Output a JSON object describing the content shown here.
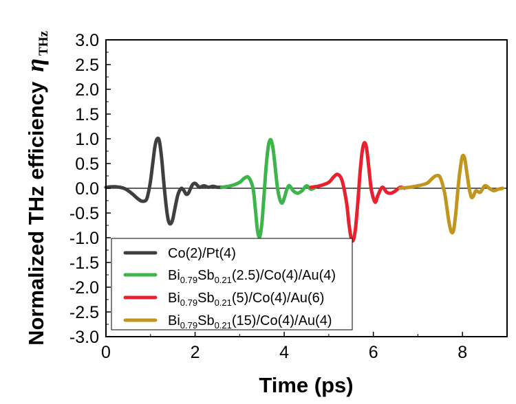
{
  "chart_data": {
    "type": "line",
    "xlabel": "Time (ps)",
    "ylabel_main": "Normalized THz efficiency",
    "ylabel_symbol": "η",
    "ylabel_symbol_sub": "THz",
    "xlim": [
      0,
      9
    ],
    "ylim": [
      -3.0,
      3.0
    ],
    "x_ticks": [
      0,
      2,
      4,
      6,
      8
    ],
    "x_tick_labels": [
      "0",
      "2",
      "4",
      "6",
      "8"
    ],
    "y_ticks": [
      3.0,
      2.5,
      2.0,
      1.5,
      1.0,
      0.5,
      0.0,
      -0.5,
      -1.0,
      -1.5,
      -2.0,
      -2.5,
      -3.0
    ],
    "y_tick_labels": [
      "3.0",
      "2.5",
      "2.0",
      "1.5",
      "1.0",
      "0.5",
      "0.0",
      "-0.5",
      "-1.0",
      "-1.5",
      "-2.0",
      "-2.5",
      "-3.0"
    ],
    "zero_line": true,
    "legend_position": "bottom-left",
    "series": [
      {
        "name": "Co(2)/Pt(4)",
        "label_parts": [
          {
            "t": "Co(2)/Pt(4)",
            "sub": false
          }
        ],
        "color": "#3f3f3f",
        "x": [
          0.0,
          0.2,
          0.4,
          0.5,
          0.6,
          0.7,
          0.8,
          0.9,
          0.95,
          1.0,
          1.05,
          1.1,
          1.15,
          1.2,
          1.25,
          1.3,
          1.35,
          1.4,
          1.45,
          1.5,
          1.55,
          1.6,
          1.65,
          1.7,
          1.75,
          1.8,
          1.85,
          1.9,
          1.95,
          2.0,
          2.05,
          2.1,
          2.2,
          2.3,
          2.4,
          2.5,
          2.6
        ],
        "y": [
          0.02,
          0.03,
          0.0,
          -0.05,
          -0.12,
          -0.2,
          -0.26,
          -0.24,
          -0.1,
          0.15,
          0.5,
          0.85,
          1.0,
          0.95,
          0.6,
          0.1,
          -0.35,
          -0.65,
          -0.72,
          -0.62,
          -0.4,
          -0.18,
          -0.05,
          0.0,
          -0.05,
          -0.12,
          -0.1,
          0.0,
          0.08,
          0.1,
          0.06,
          0.02,
          0.05,
          0.02,
          0.04,
          0.02,
          0.02
        ]
      },
      {
        "name": "Bi0.79Sb0.21(2.5)/Co(4)/Au(4)",
        "label_parts": [
          {
            "t": "Bi",
            "sub": false
          },
          {
            "t": "0.79",
            "sub": true
          },
          {
            "t": "Sb",
            "sub": false
          },
          {
            "t": "0.21",
            "sub": true
          },
          {
            "t": "(2.5)/Co(4)/Au(4)",
            "sub": false
          }
        ],
        "color": "#3cb54a",
        "x": [
          2.6,
          2.8,
          3.0,
          3.1,
          3.2,
          3.3,
          3.35,
          3.4,
          3.45,
          3.5,
          3.55,
          3.6,
          3.65,
          3.7,
          3.75,
          3.8,
          3.85,
          3.9,
          3.95,
          4.0,
          4.05,
          4.1,
          4.15,
          4.2,
          4.3,
          4.4,
          4.5,
          4.6,
          4.7
        ],
        "y": [
          0.02,
          0.05,
          0.12,
          0.2,
          0.22,
          0.0,
          -0.4,
          -0.85,
          -0.98,
          -0.7,
          -0.1,
          0.5,
          0.88,
          0.98,
          0.8,
          0.4,
          0.0,
          -0.22,
          -0.3,
          -0.2,
          -0.05,
          0.05,
          0.02,
          -0.05,
          -0.1,
          -0.05,
          0.05,
          -0.02,
          0.02
        ]
      },
      {
        "name": "Bi0.79Sb0.21(5)/Co(4)/Au(6)",
        "label_parts": [
          {
            "t": "Bi",
            "sub": false
          },
          {
            "t": "0.79",
            "sub": true
          },
          {
            "t": "Sb",
            "sub": false
          },
          {
            "t": "0.21",
            "sub": true
          },
          {
            "t": "(5)/Co(4)/Au(6)",
            "sub": false
          }
        ],
        "color": "#e8212c",
        "x": [
          4.6,
          4.8,
          5.0,
          5.1,
          5.2,
          5.3,
          5.4,
          5.45,
          5.5,
          5.55,
          5.6,
          5.65,
          5.7,
          5.75,
          5.8,
          5.85,
          5.9,
          5.95,
          6.0,
          6.05,
          6.1,
          6.2,
          6.3,
          6.4,
          6.5,
          6.6,
          6.7
        ],
        "y": [
          0.02,
          0.05,
          0.12,
          0.22,
          0.28,
          0.15,
          -0.3,
          -0.7,
          -1.0,
          -1.05,
          -0.8,
          -0.3,
          0.3,
          0.75,
          0.92,
          0.8,
          0.4,
          0.0,
          -0.2,
          -0.28,
          -0.15,
          0.02,
          -0.08,
          -0.1,
          -0.05,
          0.02,
          0.0
        ]
      },
      {
        "name": "Bi0.79Sb0.21(15)/Co(4)/Au(4)",
        "label_parts": [
          {
            "t": "Bi",
            "sub": false
          },
          {
            "t": "0.79",
            "sub": true
          },
          {
            "t": "Sb",
            "sub": false
          },
          {
            "t": "0.21",
            "sub": true
          },
          {
            "t": "(15)/Co(4)/Au(4)",
            "sub": false
          }
        ],
        "color": "#c2951e",
        "x": [
          6.6,
          6.8,
          7.0,
          7.2,
          7.3,
          7.4,
          7.5,
          7.6,
          7.65,
          7.7,
          7.75,
          7.8,
          7.85,
          7.9,
          7.95,
          8.0,
          8.05,
          8.1,
          8.15,
          8.2,
          8.25,
          8.3,
          8.4,
          8.5,
          8.6,
          8.7,
          8.8,
          8.9
        ],
        "y": [
          0.0,
          0.02,
          0.05,
          0.1,
          0.18,
          0.25,
          0.22,
          -0.1,
          -0.4,
          -0.7,
          -0.88,
          -0.85,
          -0.5,
          0.0,
          0.4,
          0.65,
          0.6,
          0.3,
          0.0,
          -0.18,
          -0.15,
          -0.05,
          -0.08,
          0.05,
          0.0,
          -0.05,
          -0.02,
          0.0
        ]
      }
    ]
  }
}
